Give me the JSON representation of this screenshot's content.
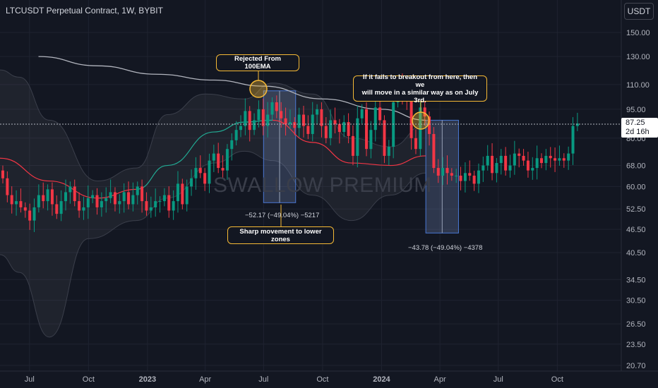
{
  "header": {
    "symbol_title": "LTCUSDT Perpetual Contract, 1W, BYBIT",
    "currency": "USDT"
  },
  "watermark": "SWALLOW PREMIUM",
  "price": {
    "current": "87.25",
    "countdown": "2d 16h"
  },
  "annotations": {
    "rejected": "Rejected From 100EMA",
    "breakout_line1": "If it fails to breakout from here, then we",
    "breakout_line2": "will move in a similar way as on July 3rd.",
    "sharp": "Sharp movement to lower zones",
    "range1": "−52.17 (−49.04%) −5217",
    "range2": "−43.78 (−49.04%) −4378"
  },
  "colors": {
    "background": "#131722",
    "up": "#089981",
    "down": "#f23645",
    "ema100": "#b2b5be",
    "sma20": "#f23645",
    "callout_border": "#f5b935",
    "range_box": "#5b6b8c"
  },
  "chart_data": {
    "type": "candlestick",
    "title": "LTCUSDT Perpetual Contract, 1W, BYBIT",
    "y_scale": "log",
    "ylim": [
      20.7,
      170
    ],
    "y_ticks": [
      150,
      130,
      110,
      95,
      80,
      68,
      60,
      52.5,
      46.5,
      40.5,
      34.5,
      30.5,
      26.5,
      23.5,
      20.7
    ],
    "y_tick_labels": [
      "150.00",
      "130.00",
      "110.00",
      "95.00",
      "80.00",
      "68.00",
      "60.00",
      "52.50",
      "46.50",
      "40.50",
      "34.50",
      "30.50",
      "26.50",
      "23.50",
      "20.70"
    ],
    "x_ticks": [
      "Jul",
      "Oct",
      "2023",
      "Apr",
      "Jul",
      "Oct",
      "2024",
      "Apr",
      "Jul",
      "Oct"
    ],
    "x_tick_dates": [
      "2022-07-01",
      "2022-10-01",
      "2023-01-01",
      "2023-04-01",
      "2023-07-01",
      "2023-10-01",
      "2024-01-01",
      "2024-04-01",
      "2024-07-01",
      "2024-10-01"
    ],
    "x_range": [
      "2022-05-16",
      "2024-12-31"
    ],
    "candles_start": "2022-05-16",
    "candle_interval_days": 7,
    "close": [
      63,
      57,
      54,
      55,
      53,
      52,
      49,
      53,
      57,
      55,
      59,
      54,
      51,
      55,
      58,
      60,
      55,
      52,
      53,
      56,
      57,
      53,
      55,
      56,
      58,
      54,
      55,
      58,
      54,
      57,
      60,
      55,
      52,
      53,
      55,
      55,
      57,
      52,
      55,
      61,
      54,
      60,
      63,
      67,
      65,
      61,
      70,
      73,
      67,
      66,
      75,
      79,
      84,
      86,
      94,
      84,
      89,
      95,
      86,
      92,
      99,
      94,
      90,
      87,
      88,
      85,
      92,
      86,
      82,
      92,
      95,
      86,
      80,
      89,
      87,
      83,
      88,
      81,
      72,
      90,
      95,
      75,
      84,
      96,
      89,
      72,
      76,
      99,
      109,
      102,
      100,
      80,
      75,
      96,
      91,
      82,
      67,
      64,
      67,
      65,
      64,
      64,
      62,
      65,
      64,
      61,
      66,
      68,
      72,
      65,
      69,
      72,
      66,
      68,
      73,
      72,
      70,
      66,
      67,
      71,
      69,
      72,
      71,
      70,
      71,
      70,
      73,
      86,
      87.25
    ],
    "open_first": 66,
    "ema100": [
      {
        "date": "2022-07-15",
        "value": 130
      },
      {
        "date": "2022-10-15",
        "value": 123
      },
      {
        "date": "2023-01-15",
        "value": 117
      },
      {
        "date": "2023-04-15",
        "value": 113
      },
      {
        "date": "2023-07-01",
        "value": 109
      },
      {
        "date": "2023-10-01",
        "value": 101
      },
      {
        "date": "2024-01-01",
        "value": 95
      },
      {
        "date": "2024-03-10",
        "value": 89
      }
    ],
    "sma20": [
      {
        "date": "2022-05-16",
        "value": 71
      },
      {
        "date": "2022-08-01",
        "value": 62
      },
      {
        "date": "2022-10-15",
        "value": 56
      },
      {
        "date": "2022-12-15",
        "value": 59
      },
      {
        "date": "2023-02-01",
        "value": 68
      },
      {
        "date": "2023-04-15",
        "value": 83
      },
      {
        "date": "2023-06-01",
        "value": 88
      },
      {
        "date": "2023-07-15",
        "value": 89
      },
      {
        "date": "2023-09-15",
        "value": 78
      },
      {
        "date": "2023-11-15",
        "value": 69
      },
      {
        "date": "2024-01-15",
        "value": 68
      },
      {
        "date": "2024-03-10",
        "value": 72
      }
    ],
    "bb_upper": [
      {
        "date": "2022-05-16",
        "value": 120
      },
      {
        "date": "2022-06-15",
        "value": 115
      },
      {
        "date": "2022-08-01",
        "value": 89
      },
      {
        "date": "2022-10-15",
        "value": 62
      },
      {
        "date": "2022-12-15",
        "value": 67
      },
      {
        "date": "2023-02-01",
        "value": 92
      },
      {
        "date": "2023-04-01",
        "value": 104
      },
      {
        "date": "2023-06-01",
        "value": 101
      },
      {
        "date": "2023-07-15",
        "value": 111
      },
      {
        "date": "2023-09-15",
        "value": 104
      },
      {
        "date": "2023-11-15",
        "value": 80
      },
      {
        "date": "2024-01-15",
        "value": 76
      },
      {
        "date": "2024-03-10",
        "value": 87
      }
    ],
    "bb_lower": [
      {
        "date": "2022-05-16",
        "value": 40
      },
      {
        "date": "2022-06-15",
        "value": 36
      },
      {
        "date": "2022-08-01",
        "value": 24.5
      },
      {
        "date": "2022-10-01",
        "value": 44
      },
      {
        "date": "2022-12-15",
        "value": 49
      },
      {
        "date": "2023-02-01",
        "value": 56
      },
      {
        "date": "2023-04-15",
        "value": 69
      },
      {
        "date": "2023-06-01",
        "value": 74
      },
      {
        "date": "2023-07-15",
        "value": 70
      },
      {
        "date": "2023-09-15",
        "value": 57
      },
      {
        "date": "2023-11-15",
        "value": 49
      },
      {
        "date": "2024-01-15",
        "value": 57
      },
      {
        "date": "2024-03-10",
        "value": 65
      }
    ],
    "range_boxes": [
      {
        "start": "2023-07-01",
        "end": "2023-08-20",
        "top": 106,
        "bottom": 54.5
      },
      {
        "start": "2024-03-10",
        "end": "2024-04-30",
        "top": 89,
        "bottom": 45.5
      }
    ]
  }
}
